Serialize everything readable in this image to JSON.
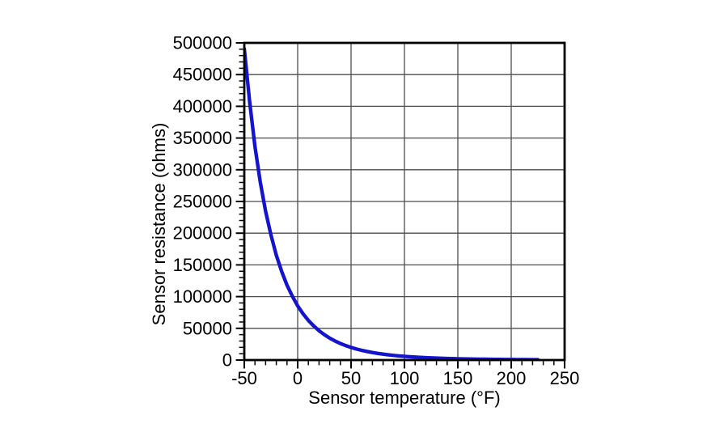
{
  "page": {
    "background": "#ffffff"
  },
  "chart_data": {
    "type": "line",
    "title": "",
    "xlabel": "Sensor temperature (°F)",
    "ylabel": "Sensor resistance (ohms)",
    "xlim": [
      -50,
      250
    ],
    "ylim": [
      0,
      500000
    ],
    "x_major_step": 50,
    "x_minor_step": 10,
    "y_major_step": 50000,
    "y_minor_step": 10000,
    "x_tick_labels": [
      "-50",
      "0",
      "50",
      "100",
      "150",
      "200",
      "250"
    ],
    "y_tick_labels": [
      "0",
      "50000",
      "100000",
      "150000",
      "200000",
      "250000",
      "300000",
      "350000",
      "400000",
      "450000",
      "500000"
    ],
    "grid": true,
    "legend_position": "none",
    "line_color": "#1414cd",
    "grid_color": "#4d4d4d",
    "frame_color": "#000000",
    "tick_color": "#000000",
    "text_color": "#000000",
    "points": [
      [
        -50,
        490813
      ],
      [
        -45,
        407407
      ],
      [
        -40,
        336606
      ],
      [
        -35,
        280279
      ],
      [
        -30,
        234196
      ],
      [
        -25,
        197060
      ],
      [
        -20,
        165180
      ],
      [
        -15,
        139747
      ],
      [
        -10,
        118018
      ],
      [
        -5,
        100701
      ],
      [
        0,
        85362
      ],
      [
        5,
        73034
      ],
      [
        10,
        62465
      ],
      [
        15,
        53826
      ],
      [
        20,
        46218
      ],
      [
        25,
        40000
      ],
      [
        30,
        34558
      ],
      [
        35,
        30036
      ],
      [
        40,
        26099
      ],
      [
        45,
        22800
      ],
      [
        50,
        19900
      ],
      [
        55,
        17410
      ],
      [
        60,
        15311
      ],
      [
        65,
        13478
      ],
      [
        70,
        11883
      ],
      [
        75,
        10501
      ],
      [
        80,
        9299
      ],
      [
        85,
        8250
      ],
      [
        90,
        7334
      ],
      [
        95,
        6530
      ],
      [
        100,
        5828
      ],
      [
        105,
        5210
      ],
      [
        110,
        4665
      ],
      [
        115,
        4184
      ],
      [
        120,
        3760
      ],
      [
        125,
        3383
      ],
      [
        130,
        3050
      ],
      [
        135,
        2754
      ],
      [
        140,
        2490
      ],
      [
        145,
        2255
      ],
      [
        150,
        2045
      ],
      [
        155,
        1857
      ],
      [
        160,
        1689
      ],
      [
        165,
        1538
      ],
      [
        170,
        1403
      ],
      [
        175,
        1281
      ],
      [
        180,
        1172
      ],
      [
        185,
        1073
      ],
      [
        190,
        984
      ],
      [
        195,
        903
      ],
      [
        200,
        830
      ],
      [
        205,
        764
      ],
      [
        210,
        703
      ],
      [
        215,
        648
      ],
      [
        220,
        598
      ],
      [
        225,
        553
      ]
    ]
  }
}
